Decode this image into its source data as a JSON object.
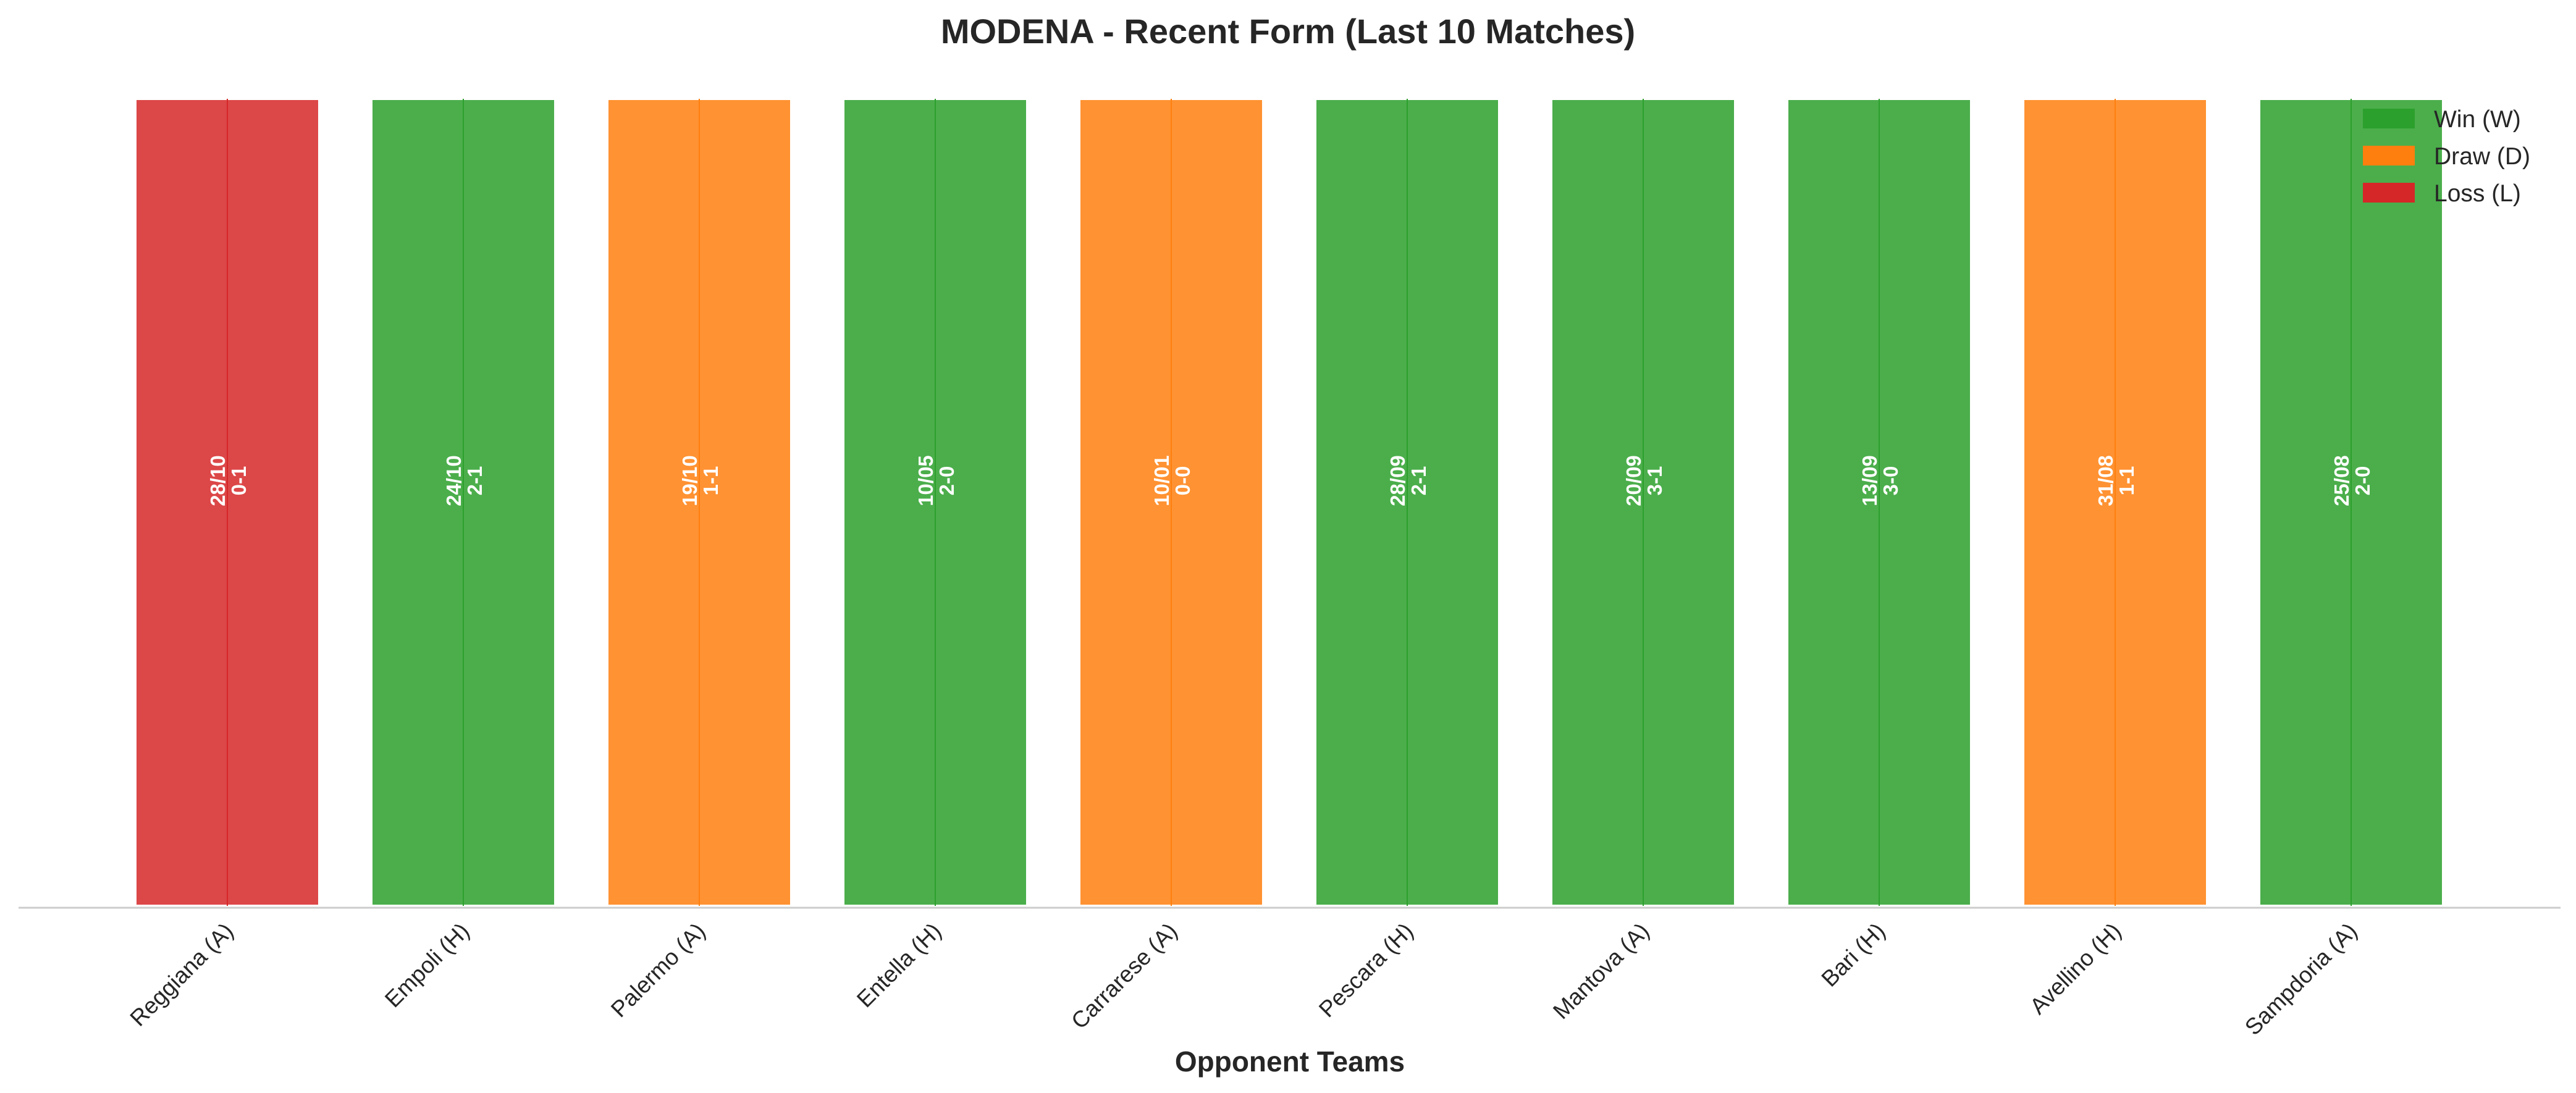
{
  "chart_data": {
    "type": "bar",
    "title": "MODENA - Recent Form (Last 10 Matches)",
    "xlabel": "Opponent Teams",
    "ylabel": "",
    "categories": [
      "Reggiana (A)",
      "Empoli (H)",
      "Palermo (A)",
      "Entella (H)",
      "Carrarese (A)",
      "Pescara (H)",
      "Mantova (A)",
      "Bari (H)",
      "Avellino (H)",
      "Sampdoria (A)"
    ],
    "values": [
      1,
      1,
      1,
      1,
      1,
      1,
      1,
      1,
      1,
      1
    ],
    "results": [
      "L",
      "W",
      "D",
      "W",
      "D",
      "W",
      "W",
      "W",
      "D",
      "W"
    ],
    "dates": [
      "28/10",
      "24/10",
      "19/10",
      "10/05",
      "10/01",
      "28/09",
      "20/09",
      "13/09",
      "31/08",
      "25/08"
    ],
    "scores": [
      "0-1",
      "2-1",
      "1-1",
      "2-0",
      "0-0",
      "2-1",
      "3-1",
      "3-0",
      "1-1",
      "2-0"
    ],
    "ylim": [
      0,
      1
    ],
    "grid": false,
    "legend": {
      "placement": "top-right",
      "entries": [
        {
          "key": "W",
          "label": "Win (W)",
          "color": "#2ca02c"
        },
        {
          "key": "D",
          "label": "Draw (D)",
          "color": "#ff7f0e"
        },
        {
          "key": "L",
          "label": "Loss (L)",
          "color": "#d62728"
        }
      ]
    },
    "colors": {
      "W": "#2ca02c",
      "D": "#ff7f0e",
      "L": "#d62728"
    }
  }
}
